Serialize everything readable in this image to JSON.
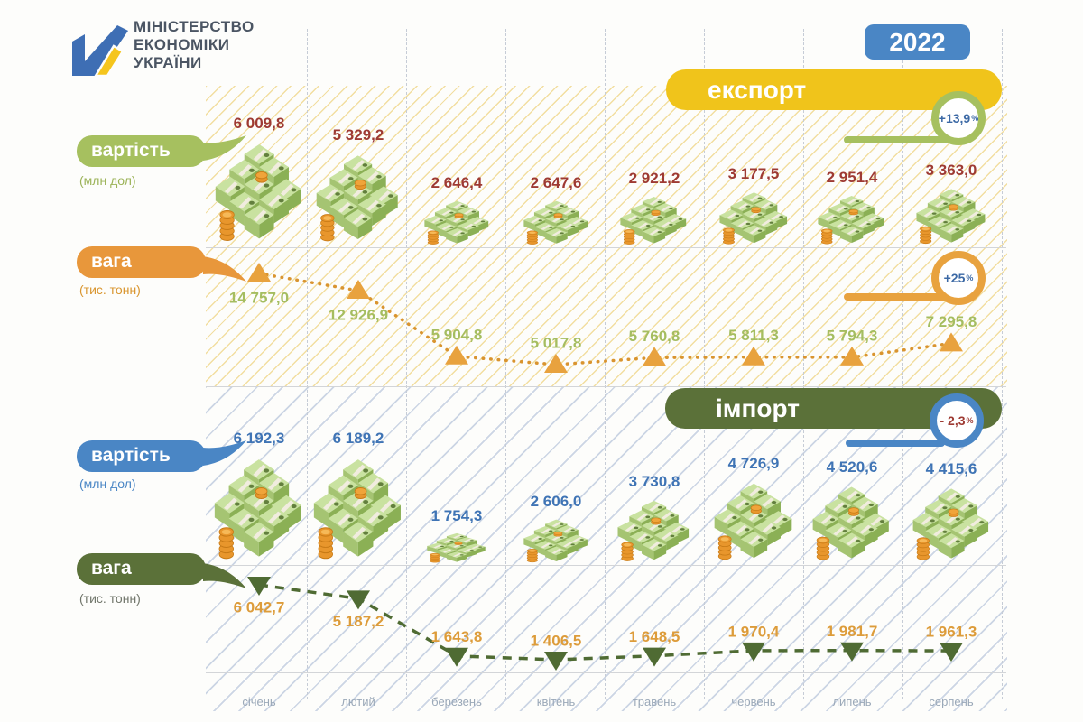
{
  "logo": {
    "lines": [
      "МІНІСТЕРСТВО",
      "ЕКОНОМІКИ",
      "УКРАЇНИ"
    ]
  },
  "year_badge": "2022",
  "months": [
    "січень",
    "лютий",
    "березень",
    "квітень",
    "травень",
    "червень",
    "липень",
    "серпень"
  ],
  "sections": {
    "export": {
      "header": "експорт",
      "value_label": "вартість",
      "value_unit": "(млн дол)",
      "value_change": {
        "value": "+13,9",
        "unit": "%"
      },
      "weight_label": "вага",
      "weight_unit": "(тис. тонн)",
      "weight_change": {
        "value": "+25",
        "unit": "%"
      },
      "values_display": [
        "6 009,8",
        "5 329,2",
        "2 646,4",
        "2 647,6",
        "2 921,2",
        "3 177,5",
        "2 951,4",
        "3 363,0"
      ],
      "weights_display": [
        "14 757,0",
        "12 926,9",
        "5 904,8",
        "5 017,8",
        "5 760,8",
        "5 811,3",
        "5 794,3",
        "7 295,8"
      ]
    },
    "import": {
      "header": "імпорт",
      "value_label": "вартість",
      "value_unit": "(млн дол)",
      "value_change": {
        "value": "- 2,3",
        "unit": "%"
      },
      "weight_label": "вага",
      "weight_unit": "(тис. тонн)",
      "values_display": [
        "6 192,3",
        "6 189,2",
        "1 754,3",
        "2 606,0",
        "3 730,8",
        "4 726,9",
        "4 520,6",
        "4 415,6"
      ],
      "weights_display": [
        "6 042,7",
        "5 187,2",
        "1 643,8",
        "1 406,5",
        "1 648,5",
        "1 970,4",
        "1 981,7",
        "1 961,3"
      ]
    }
  },
  "colors": {
    "year_badge_blue": "#4a86c5",
    "export_header_yellow": "#f0c41b",
    "import_header_green": "#5b7139",
    "export_value_bubble": "#a6c05f",
    "export_value_text": "#9e3a33",
    "export_weight_bubble": "#e8973b",
    "export_weight_marker": "#e8a23e",
    "export_weight_text": "#a5bd60",
    "import_value_bubble": "#4a86c5",
    "import_value_text": "#3f74b5",
    "import_weight_bubble": "#5b7139",
    "import_weight_marker": "#4f6b33",
    "import_weight_text": "#dd9c3a",
    "badge_text_blue": "#3c69a5",
    "badge_text_red": "#9e3a33"
  },
  "chart_data": {
    "type": "line",
    "title": "Експорт та імпорт України, 2022 (січень–серпень)",
    "categories": [
      "січень",
      "лютий",
      "березень",
      "квітень",
      "травень",
      "червень",
      "липень",
      "серпень"
    ],
    "series": [
      {
        "name": "експорт: вартість",
        "unit": "млн дол",
        "marker": "money-stack",
        "values": [
          6009.8,
          5329.2,
          2646.4,
          2647.6,
          2921.2,
          3177.5,
          2951.4,
          3363.0
        ],
        "change": "+13,9%"
      },
      {
        "name": "експорт: вага",
        "unit": "тис. тонн",
        "marker": "triangle-up",
        "line": "dotted",
        "values": [
          14757.0,
          12926.9,
          5904.8,
          5017.8,
          5760.8,
          5811.3,
          5794.3,
          7295.8
        ],
        "change": "+25%"
      },
      {
        "name": "імпорт: вартість",
        "unit": "млн дол",
        "marker": "money-stack",
        "values": [
          6192.3,
          6189.2,
          1754.3,
          2606.0,
          3730.8,
          4726.9,
          4520.6,
          4415.6
        ],
        "change": "-2,3%"
      },
      {
        "name": "імпорт: вага",
        "unit": "тис. тонн",
        "marker": "triangle-down",
        "line": "dashed",
        "values": [
          6042.7,
          5187.2,
          1643.8,
          1406.5,
          1648.5,
          1970.4,
          1981.7,
          1961.3
        ],
        "change": null
      }
    ],
    "legend_position": "left",
    "grid": "vertical-dashed"
  }
}
